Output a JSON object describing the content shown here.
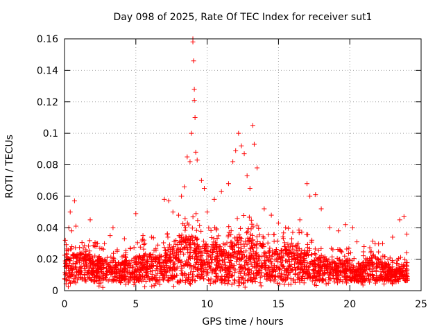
{
  "chart_data": {
    "type": "scatter",
    "title": "Day 098 of 2025, Rate Of TEC Index for receiver sut1",
    "xlabel": "GPS time / hours",
    "ylabel": "ROTI / TECUs",
    "xlim": [
      0,
      25
    ],
    "ylim": [
      0,
      0.16
    ],
    "xticks": [
      0,
      5,
      10,
      15,
      20,
      25
    ],
    "xtick_labels": [
      "0",
      "5",
      "10",
      "15",
      "20",
      "25"
    ],
    "yticks": [
      0,
      0.02,
      0.04,
      0.06,
      0.08,
      0.1,
      0.12,
      0.14,
      0.16
    ],
    "ytick_labels": [
      "0",
      "0.02",
      "0.04",
      "0.06",
      "0.08",
      "0.1",
      "0.12",
      "0.14",
      "0.16"
    ],
    "grid": true,
    "marker": "+",
    "color": "#ff0000",
    "series": [
      {
        "name": "ROTI",
        "points": [
          [
            0.2,
            0.021
          ],
          [
            0.3,
            0.04
          ],
          [
            0.4,
            0.05
          ],
          [
            0.5,
            0.038
          ],
          [
            0.7,
            0.057
          ],
          [
            0.8,
            0.041
          ],
          [
            1.5,
            0.026
          ],
          [
            1.8,
            0.045
          ],
          [
            2.2,
            0.028
          ],
          [
            2.8,
            0.03
          ],
          [
            3.2,
            0.035
          ],
          [
            3.4,
            0.04
          ],
          [
            4.2,
            0.033
          ],
          [
            4.6,
            0.027
          ],
          [
            5.0,
            0.049
          ],
          [
            5.5,
            0.035
          ],
          [
            6.1,
            0.034
          ],
          [
            7.0,
            0.058
          ],
          [
            7.3,
            0.057
          ],
          [
            7.6,
            0.05
          ],
          [
            8.0,
            0.048
          ],
          [
            8.2,
            0.06
          ],
          [
            8.4,
            0.066
          ],
          [
            8.6,
            0.085
          ],
          [
            8.8,
            0.082
          ],
          [
            8.9,
            0.1
          ],
          [
            9.0,
            0.16
          ],
          [
            9.0,
            0.158
          ],
          [
            9.05,
            0.146
          ],
          [
            9.1,
            0.128
          ],
          [
            9.1,
            0.121
          ],
          [
            9.15,
            0.11
          ],
          [
            9.2,
            0.088
          ],
          [
            9.3,
            0.083
          ],
          [
            9.6,
            0.07
          ],
          [
            9.8,
            0.065
          ],
          [
            10.0,
            0.05
          ],
          [
            10.5,
            0.058
          ],
          [
            11.0,
            0.063
          ],
          [
            11.5,
            0.068
          ],
          [
            11.8,
            0.082
          ],
          [
            12.0,
            0.089
          ],
          [
            12.2,
            0.1
          ],
          [
            12.4,
            0.092
          ],
          [
            12.6,
            0.087
          ],
          [
            12.8,
            0.073
          ],
          [
            13.0,
            0.065
          ],
          [
            13.2,
            0.105
          ],
          [
            13.3,
            0.093
          ],
          [
            13.5,
            0.078
          ],
          [
            14.0,
            0.052
          ],
          [
            14.5,
            0.048
          ],
          [
            15.0,
            0.043
          ],
          [
            15.5,
            0.04
          ],
          [
            16.0,
            0.037
          ],
          [
            16.5,
            0.045
          ],
          [
            17.0,
            0.068
          ],
          [
            17.2,
            0.06
          ],
          [
            17.6,
            0.061
          ],
          [
            18.0,
            0.052
          ],
          [
            18.6,
            0.04
          ],
          [
            19.2,
            0.038
          ],
          [
            19.7,
            0.042
          ],
          [
            20.2,
            0.04
          ],
          [
            20.5,
            0.031
          ],
          [
            21.0,
            0.028
          ],
          [
            21.5,
            0.025
          ],
          [
            22.3,
            0.03
          ],
          [
            23.0,
            0.034
          ],
          [
            23.5,
            0.045
          ],
          [
            23.8,
            0.047
          ],
          [
            24.0,
            0.036
          ]
        ]
      }
    ],
    "noise_seed": 2025
  }
}
